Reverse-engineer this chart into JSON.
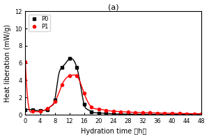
{
  "title": "(a)",
  "xlabel": "Hydration time （h）",
  "ylabel": "Heat liberation (mW/g)",
  "xlim": [
    0,
    48
  ],
  "ylim": [
    0,
    12
  ],
  "xticks": [
    0,
    4,
    8,
    12,
    16,
    20,
    24,
    28,
    32,
    36,
    40,
    44,
    48
  ],
  "yticks": [
    0,
    2,
    4,
    6,
    8,
    10,
    12
  ],
  "P0_x": [
    0,
    1,
    2,
    3,
    4,
    5,
    6,
    7,
    8,
    9,
    10,
    11,
    12,
    13,
    14,
    15,
    16,
    17,
    18,
    20,
    22,
    24,
    26,
    28,
    30,
    32,
    34,
    36,
    38,
    40,
    42,
    44,
    46,
    48
  ],
  "P0_y": [
    0.55,
    0.6,
    0.55,
    0.5,
    0.45,
    0.5,
    0.6,
    1.0,
    1.7,
    4.5,
    5.5,
    6.0,
    6.5,
    6.4,
    5.5,
    3.5,
    1.2,
    0.6,
    0.35,
    0.2,
    0.15,
    0.1,
    0.08,
    0.07,
    0.06,
    0.05,
    0.05,
    0.04,
    0.04,
    0.03,
    0.03,
    0.03,
    0.02,
    0.02
  ],
  "P1_x": [
    0,
    1,
    2,
    3,
    4,
    5,
    6,
    7,
    8,
    9,
    10,
    11,
    12,
    13,
    14,
    15,
    16,
    17,
    18,
    20,
    22,
    24,
    26,
    28,
    30,
    32,
    34,
    36,
    38,
    40,
    42,
    44,
    46,
    48
  ],
  "P1_y": [
    6.1,
    0.7,
    0.4,
    0.35,
    0.4,
    0.5,
    0.7,
    1.0,
    1.5,
    2.4,
    3.5,
    4.2,
    4.5,
    4.6,
    4.5,
    3.7,
    2.5,
    1.5,
    0.9,
    0.65,
    0.5,
    0.4,
    0.35,
    0.3,
    0.28,
    0.25,
    0.22,
    0.2,
    0.18,
    0.16,
    0.14,
    0.12,
    0.12,
    0.12
  ],
  "P0_color": "black",
  "P1_color": "red",
  "P0_marker": "s",
  "P1_marker": "o",
  "P0_label": "P0",
  "P1_label": "P1",
  "marker_x": [
    0,
    2,
    4,
    6,
    8,
    10,
    12,
    14,
    16,
    18,
    20,
    22,
    24,
    26,
    28,
    30,
    32,
    34,
    36,
    38,
    40,
    42,
    44,
    46,
    48
  ],
  "legend_loc": "upper left",
  "figsize": [
    3.0,
    2.0
  ],
  "dpi": 100
}
